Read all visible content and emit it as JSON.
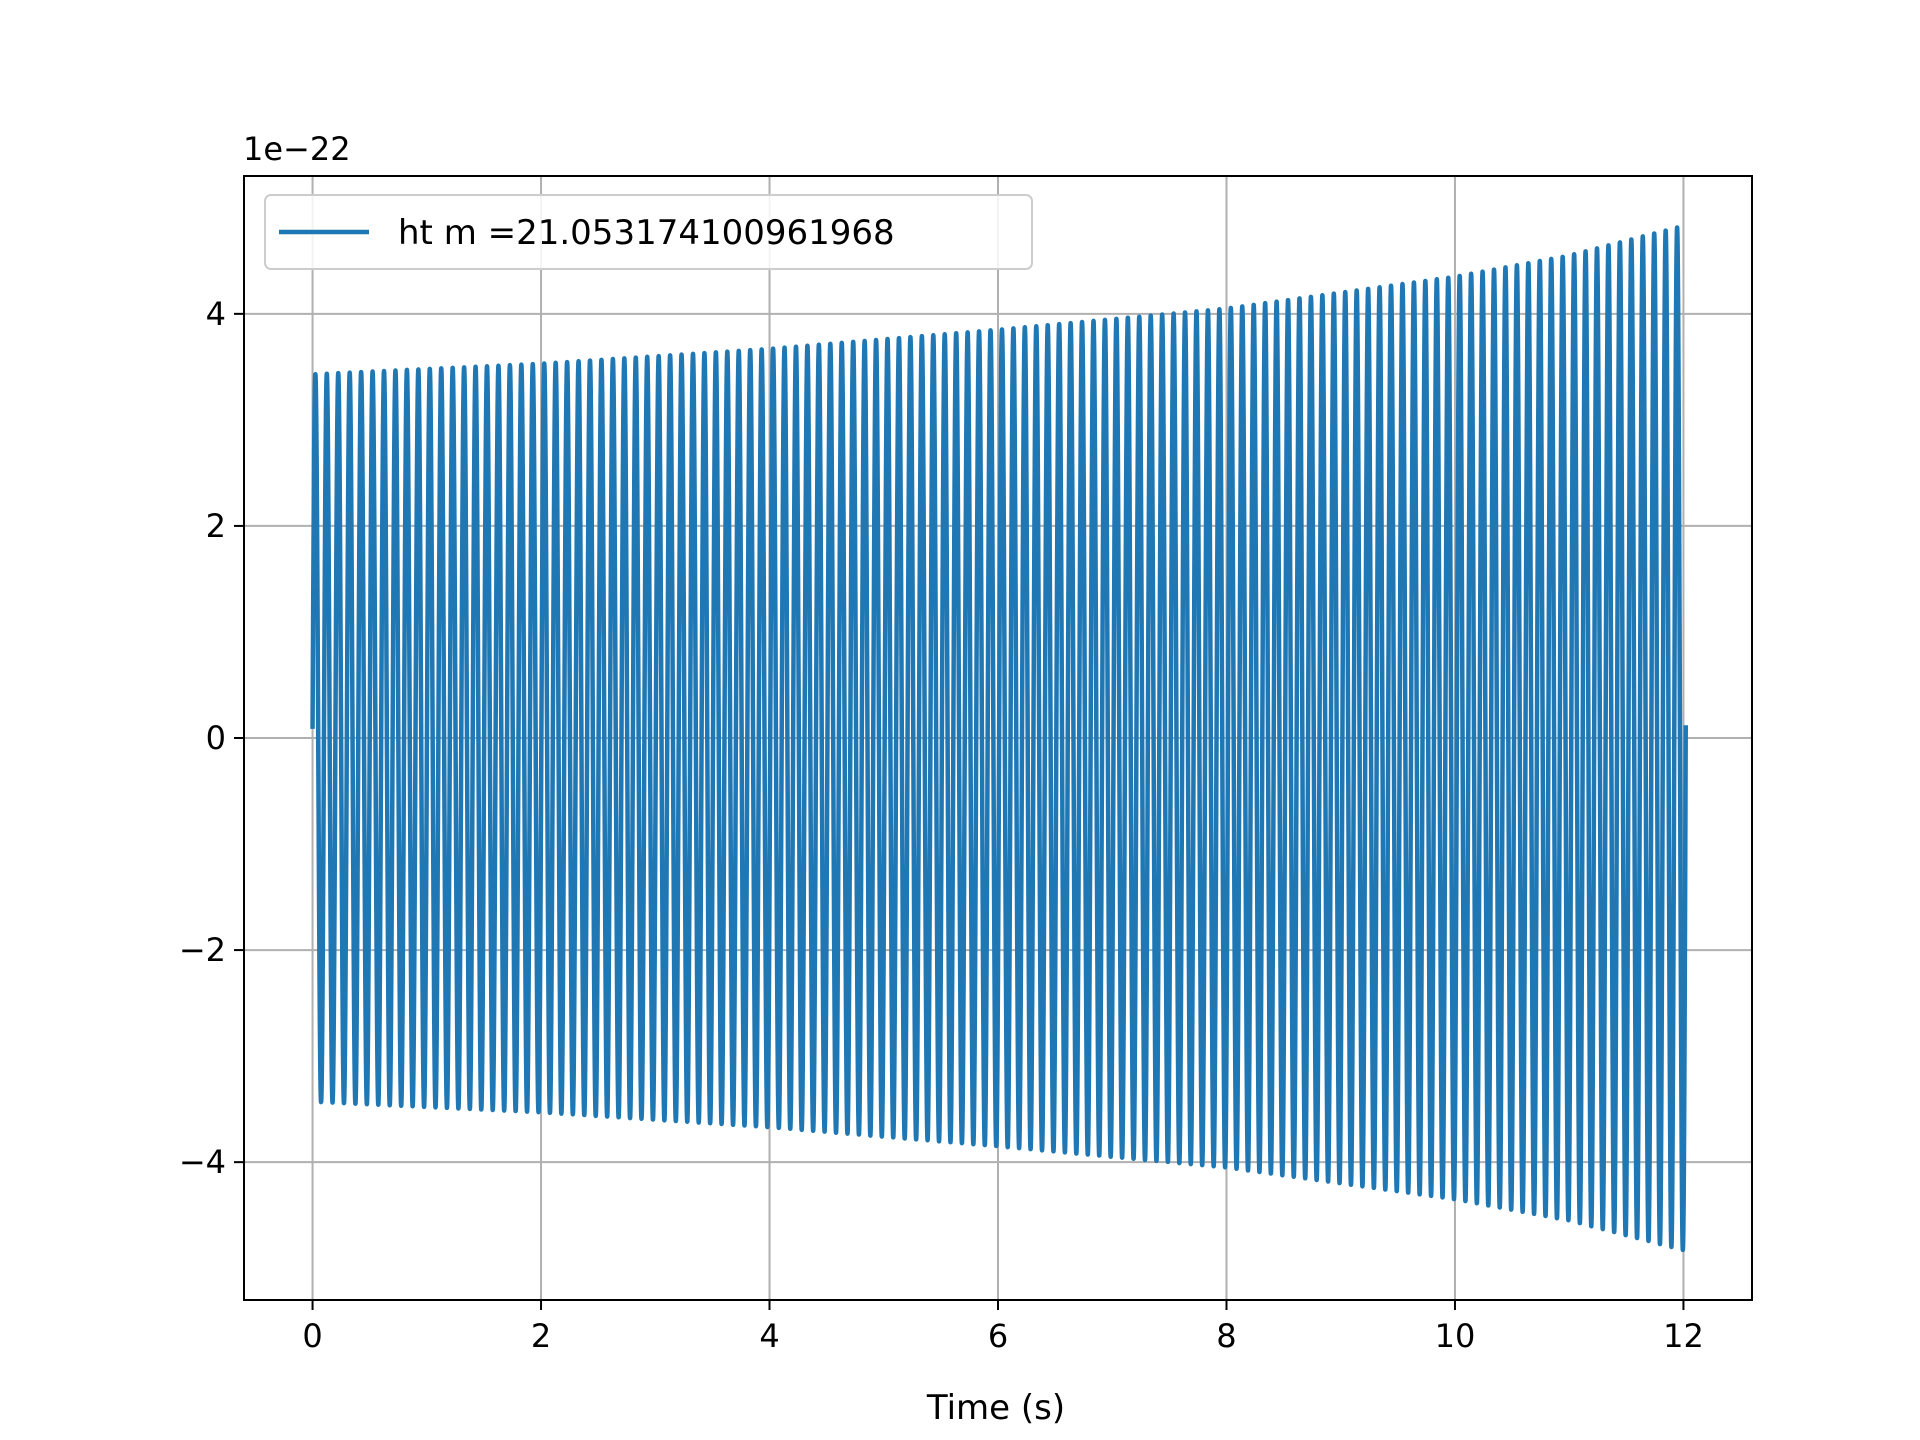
{
  "chart_data": {
    "type": "line",
    "title": "",
    "xlabel": "Time (s)",
    "ylabel": "",
    "y_scale_label": "1e−22",
    "xlim": [
      -0.6,
      12.6
    ],
    "ylim": [
      -5.3,
      5.3
    ],
    "x_ticks": [
      0,
      2,
      4,
      6,
      8,
      10,
      12
    ],
    "x_tick_labels": [
      "0",
      "2",
      "4",
      "6",
      "8",
      "10",
      "12"
    ],
    "y_ticks": [
      -4,
      -2,
      0,
      2,
      4
    ],
    "y_tick_labels": [
      "−4",
      "−2",
      "0",
      "2",
      "4"
    ],
    "grid": true,
    "legend_position": "upper-left",
    "series": [
      {
        "name": "ht m =21.053174100961968",
        "color": "#1f77b4",
        "t_start": 0,
        "t_end": 12.02,
        "cycles": 120,
        "envelope_t": [
          0,
          2,
          4,
          6,
          8,
          10,
          11,
          12
        ],
        "envelope_amplitude": [
          3.43,
          3.53,
          3.67,
          3.85,
          4.05,
          4.35,
          4.55,
          4.83
        ]
      }
    ]
  }
}
